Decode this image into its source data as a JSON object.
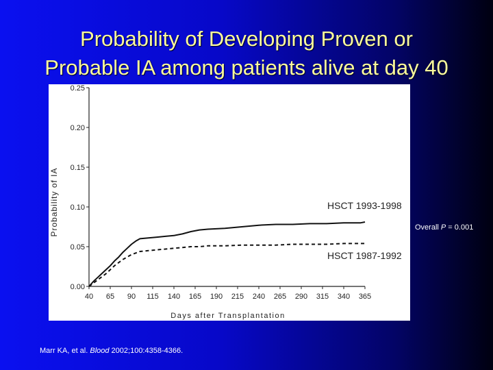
{
  "slide": {
    "title_line1": "Probability of Developing Proven or",
    "title_line2": "Probable IA among patients alive at day 40",
    "overall_p_prefix": "Overall ",
    "overall_p_symbol": "P",
    "overall_p_value": " = 0.001",
    "citation_authors": "Marr KA, et al. ",
    "citation_journal": "Blood",
    "citation_details": " 2002;100:4358-4366.",
    "colors": {
      "title": "#fbfb9c",
      "background_start": "#0a10f0",
      "background_end": "#000010"
    }
  },
  "chart_data": {
    "type": "line",
    "xlabel": "Days after Transplantation",
    "ylabel": "Probability of IA",
    "xlim": [
      40,
      365
    ],
    "ylim": [
      0,
      0.25
    ],
    "x_ticks": [
      40,
      65,
      90,
      115,
      140,
      165,
      190,
      215,
      240,
      265,
      290,
      315,
      340,
      365
    ],
    "y_ticks": [
      "0.00",
      "0.05",
      "0.10",
      "0.15",
      "0.20",
      "0.25"
    ],
    "series": [
      {
        "name": "HSCT 1993-1998",
        "style": "solid",
        "x": [
          40,
          45,
          50,
          55,
          60,
          65,
          70,
          75,
          80,
          85,
          90,
          95,
          100,
          110,
          120,
          130,
          140,
          150,
          160,
          170,
          180,
          200,
          220,
          240,
          260,
          280,
          300,
          320,
          340,
          360,
          365
        ],
        "y": [
          0.0,
          0.006,
          0.011,
          0.016,
          0.021,
          0.026,
          0.032,
          0.037,
          0.043,
          0.048,
          0.053,
          0.057,
          0.06,
          0.061,
          0.062,
          0.063,
          0.064,
          0.066,
          0.069,
          0.071,
          0.072,
          0.073,
          0.075,
          0.077,
          0.078,
          0.078,
          0.079,
          0.079,
          0.08,
          0.08,
          0.081
        ]
      },
      {
        "name": "HSCT 1987-1992",
        "style": "dashed",
        "x": [
          40,
          45,
          50,
          55,
          60,
          65,
          70,
          75,
          80,
          85,
          90,
          95,
          100,
          110,
          120,
          130,
          140,
          150,
          160,
          170,
          180,
          200,
          220,
          240,
          260,
          280,
          300,
          320,
          340,
          360,
          365
        ],
        "y": [
          0.0,
          0.004,
          0.008,
          0.012,
          0.016,
          0.021,
          0.026,
          0.03,
          0.034,
          0.037,
          0.04,
          0.042,
          0.044,
          0.045,
          0.046,
          0.047,
          0.048,
          0.049,
          0.05,
          0.05,
          0.051,
          0.051,
          0.052,
          0.052,
          0.052,
          0.053,
          0.053,
          0.053,
          0.054,
          0.054,
          0.054
        ]
      }
    ],
    "series_labels": [
      "HSCT 1993-1998",
      "HSCT 1987-1992"
    ]
  }
}
